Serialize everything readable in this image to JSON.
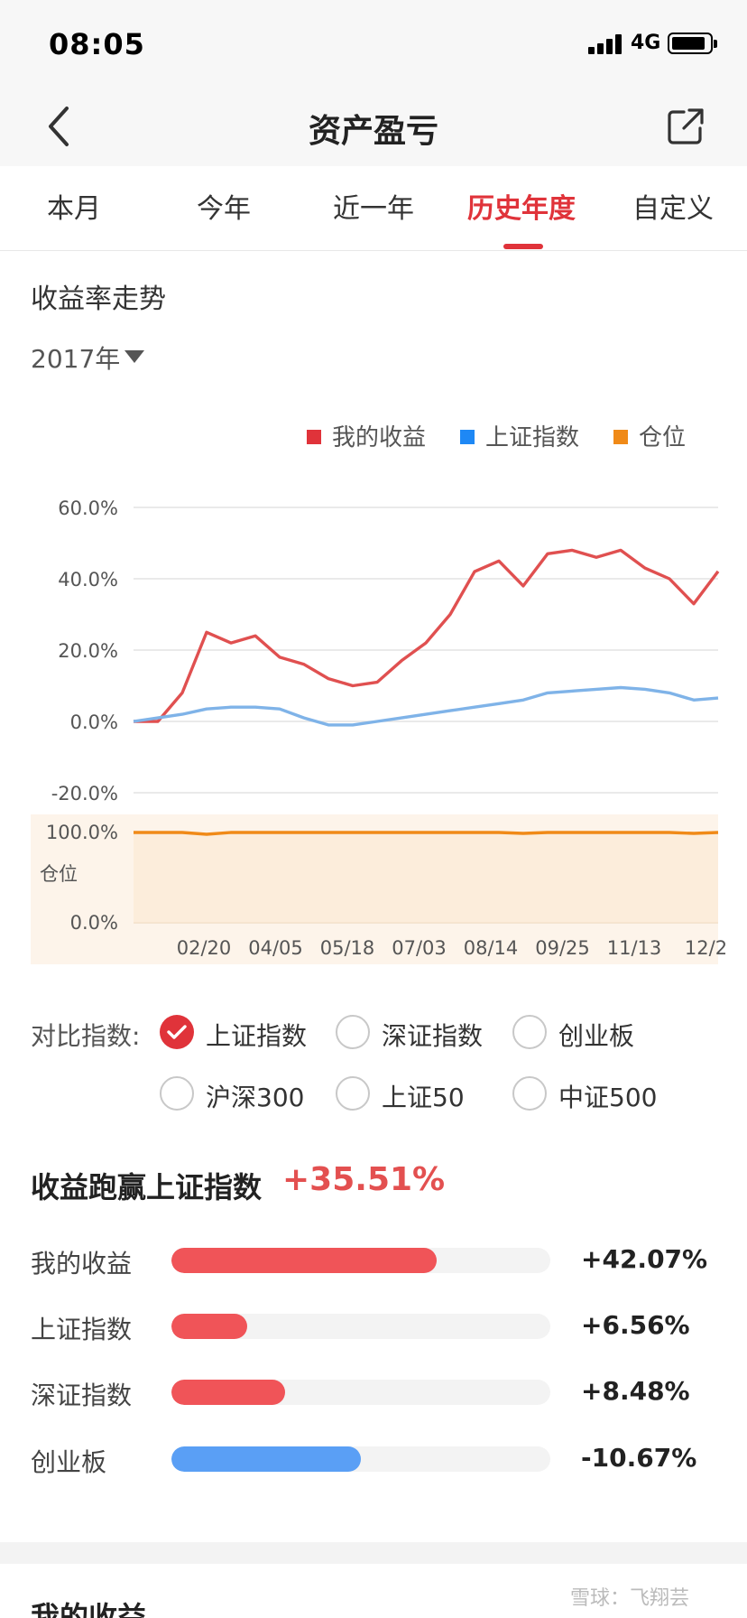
{
  "status": {
    "time": "08:05",
    "network": "4G"
  },
  "nav": {
    "title": "资产盈亏"
  },
  "tabs": [
    {
      "label": "本月"
    },
    {
      "label": "今年"
    },
    {
      "label": "近一年"
    },
    {
      "label": "历史年度",
      "active": true
    },
    {
      "label": "自定义"
    }
  ],
  "trend": {
    "title": "收益率走势",
    "year": "2017年"
  },
  "legend": [
    {
      "label": "我的收益",
      "color": "#e0333a"
    },
    {
      "label": "上证指数",
      "color": "#1e88f5"
    },
    {
      "label": "仓位",
      "color": "#f08a18"
    }
  ],
  "chart_data": [
    {
      "type": "line",
      "x": [
        "01/03",
        "01/20",
        "02/06",
        "02/20",
        "03/06",
        "03/20",
        "04/05",
        "04/20",
        "05/05",
        "05/18",
        "06/01",
        "06/15",
        "07/03",
        "07/17",
        "07/31",
        "08/14",
        "08/28",
        "09/11",
        "09/25",
        "10/16",
        "10/30",
        "11/13",
        "11/27",
        "12/11",
        "12/29"
      ],
      "tick_labels": [
        "02/20",
        "04/05",
        "05/18",
        "07/03",
        "08/14",
        "09/25",
        "11/13",
        "12/2"
      ],
      "series": [
        {
          "name": "我的收益",
          "color": "#e05050",
          "values": [
            0,
            0,
            8,
            25,
            22,
            24,
            18,
            16,
            12,
            10,
            11,
            17,
            22,
            30,
            42,
            45,
            38,
            47,
            48,
            46,
            48,
            43,
            40,
            33,
            42.07
          ]
        },
        {
          "name": "上证指数",
          "color": "#7fb3e8",
          "values": [
            0,
            1,
            2,
            3.5,
            4,
            4,
            3.5,
            1,
            -1,
            -1,
            0,
            1,
            2,
            3,
            4,
            5,
            6,
            8,
            8.5,
            9,
            9.5,
            9,
            8,
            6,
            6.56
          ]
        }
      ],
      "ylim": [
        -20,
        60
      ],
      "yticks": [
        "60.0%",
        "40.0%",
        "20.0%",
        "0.0%",
        "-20.0%"
      ],
      "grid": true
    },
    {
      "type": "area",
      "ylabel": "仓位",
      "ylim": [
        0,
        100
      ],
      "yticks": [
        "100.0%",
        "0.0%"
      ],
      "series": [
        {
          "name": "仓位",
          "color": "#f08a18",
          "values": [
            100,
            100,
            100,
            98,
            100,
            100,
            100,
            100,
            100,
            100,
            100,
            100,
            100,
            100,
            100,
            100,
            99,
            100,
            100,
            100,
            100,
            100,
            100,
            99,
            100
          ]
        }
      ]
    }
  ],
  "compare": {
    "label": "对比指数:",
    "options": [
      {
        "label": "上证指数",
        "checked": true
      },
      {
        "label": "深证指数",
        "checked": false
      },
      {
        "label": "创业板",
        "checked": false
      },
      {
        "label": "沪深300",
        "checked": false
      },
      {
        "label": "上证50",
        "checked": false
      },
      {
        "label": "中证500",
        "checked": false
      }
    ]
  },
  "beat": {
    "title": "收益跑赢上证指数",
    "value": "+35.51%"
  },
  "returns": [
    {
      "label": "我的收益",
      "value": "+42.07%",
      "fraction": 0.7,
      "color": "#f05458"
    },
    {
      "label": "上证指数",
      "value": "+6.56%",
      "fraction": 0.2,
      "color": "#f05458"
    },
    {
      "label": "深证指数",
      "value": "+8.48%",
      "fraction": 0.3,
      "color": "#f05458"
    },
    {
      "label": "创业板",
      "value": "-10.67%",
      "fraction": 0.5,
      "color": "#5a9ff5"
    }
  ],
  "bottom": {
    "title": "我的收益"
  },
  "watermark": "雪球：飞翔芸"
}
